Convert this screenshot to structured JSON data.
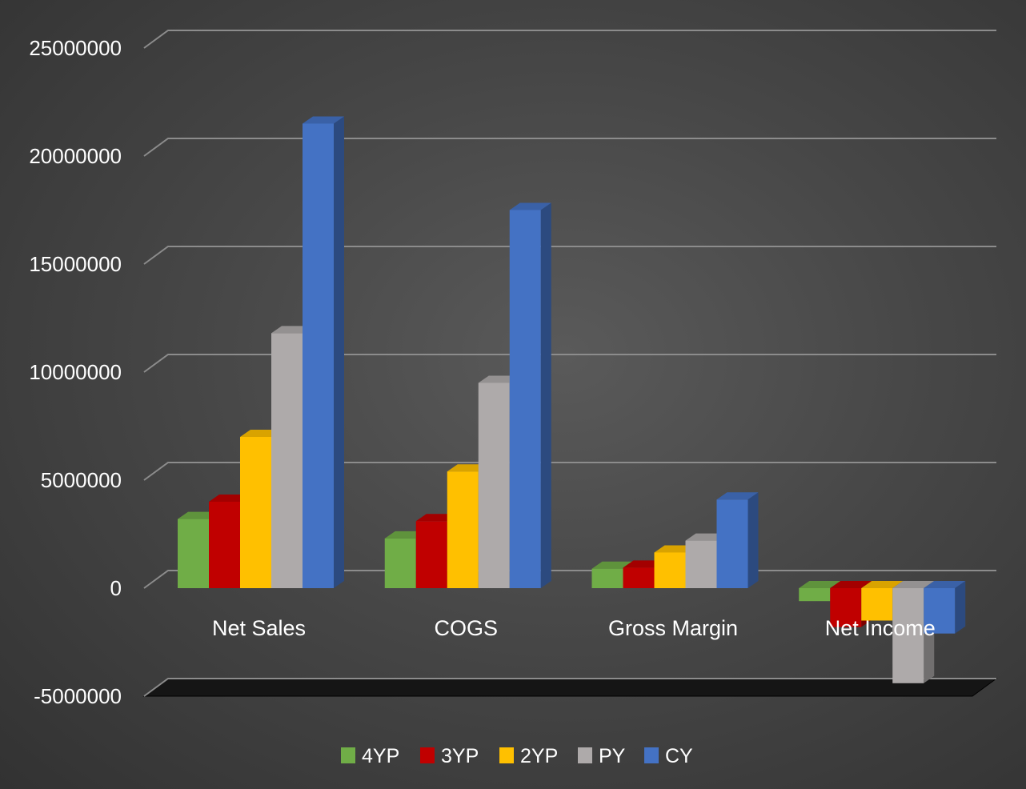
{
  "chart_data": {
    "type": "bar",
    "style": "3d-clustered-column",
    "categories": [
      "Net Sales",
      "COGS",
      "Gross Margin",
      "Net Income"
    ],
    "series": [
      {
        "name": "4YP",
        "color": "#70AD47",
        "values": [
          3200000,
          2300000,
          900000,
          -600000
        ]
      },
      {
        "name": "3YP",
        "color": "#C00000",
        "values": [
          4000000,
          3100000,
          950000,
          -1800000
        ]
      },
      {
        "name": "2YP",
        "color": "#FFC000",
        "values": [
          7000000,
          5400000,
          1650000,
          -1500000
        ]
      },
      {
        "name": "PY",
        "color": "#AEAAAA",
        "values": [
          11800000,
          9500000,
          2200000,
          -4400000
        ]
      },
      {
        "name": "CY",
        "color": "#4472C4",
        "values": [
          21500000,
          17500000,
          4100000,
          -2100000
        ]
      }
    ],
    "y_ticks": [
      "25000000",
      "20000000",
      "15000000",
      "10000000",
      "5000000",
      "0",
      "-5000000"
    ],
    "ylim": [
      -5000000,
      25000000
    ],
    "grid": true,
    "legend_position": "bottom",
    "title": "",
    "xlabel": "",
    "ylabel": ""
  }
}
